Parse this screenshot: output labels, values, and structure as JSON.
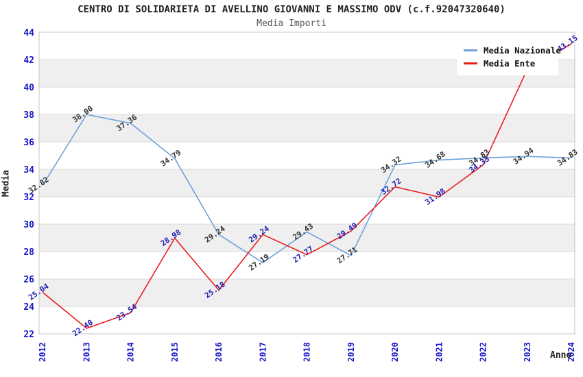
{
  "chart_data": {
    "type": "line",
    "title": "CENTRO DI SOLIDARIETA DI AVELLINO GIOVANNI E MASSIMO ODV (c.f.92047320640)",
    "subtitle": "Media Importi",
    "ylabel": "Media",
    "xlabel": "Anno",
    "categories": [
      "2012",
      "2013",
      "2014",
      "2015",
      "2016",
      "2017",
      "2018",
      "2019",
      "2020",
      "2021",
      "2022",
      "2023",
      "2024"
    ],
    "series": [
      {
        "name": "Media Nazionale",
        "color": "#6ea0dc",
        "label_color": "#333333",
        "values": [
          32.82,
          38.0,
          37.36,
          34.79,
          29.24,
          27.19,
          29.43,
          27.71,
          34.32,
          34.68,
          34.83,
          34.94,
          34.83
        ]
      },
      {
        "name": "Media Ente",
        "color": "#eb1c1c",
        "label_color": "#2020b4",
        "values": [
          25.04,
          22.4,
          23.54,
          28.98,
          25.18,
          29.24,
          27.77,
          29.49,
          32.72,
          31.98,
          34.33,
          41.3,
          43.15
        ],
        "hidden_label_indexes": [
          11
        ]
      }
    ],
    "ylim": [
      22,
      44
    ],
    "ytick_step": 2,
    "grid": true,
    "band_color": "#efefef",
    "grid_color": "#d9d9d9",
    "border_color": "#c4c4c4",
    "axis_tick_color": "#1414cc",
    "legend_position": "top-right"
  }
}
